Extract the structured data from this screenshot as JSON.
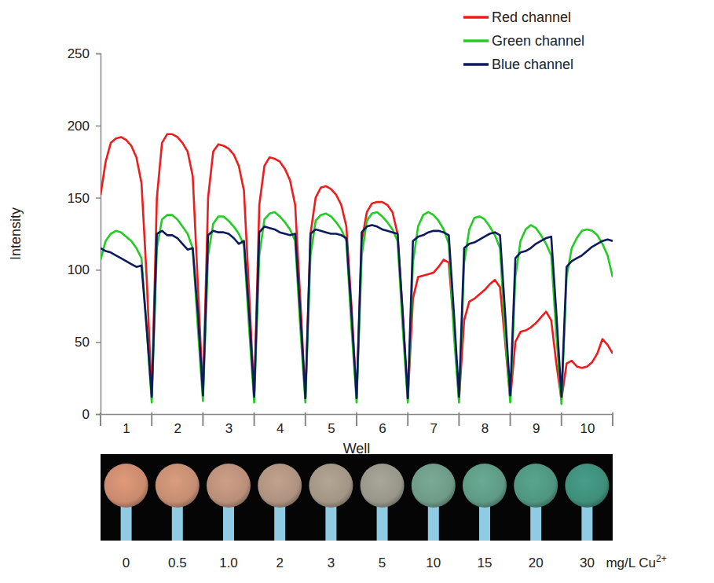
{
  "chart_data": {
    "type": "line",
    "x_label": "Well",
    "y_label": "Intensity",
    "x": [
      0.5,
      0.6,
      0.7,
      0.8,
      0.9,
      1,
      1.1,
      1.2,
      1.3,
      1.4,
      1.5,
      1.6,
      1.7,
      1.8,
      1.9,
      2,
      2.1,
      2.2,
      2.3,
      2.4,
      2.5,
      2.6,
      2.7,
      2.8,
      2.9,
      3,
      3.1,
      3.2,
      3.3,
      3.4,
      3.5,
      3.6,
      3.7,
      3.8,
      3.9,
      4,
      4.1,
      4.2,
      4.3,
      4.4,
      4.5,
      4.6,
      4.7,
      4.8,
      4.9,
      5,
      5.1,
      5.2,
      5.3,
      5.4,
      5.5,
      5.6,
      5.7,
      5.8,
      5.9,
      6,
      6.1,
      6.2,
      6.3,
      6.4,
      6.5,
      6.6,
      6.7,
      6.8,
      6.9,
      7,
      7.1,
      7.2,
      7.3,
      7.4,
      7.5,
      7.6,
      7.7,
      7.8,
      7.9,
      8,
      8.1,
      8.2,
      8.3,
      8.4,
      8.5,
      8.6,
      8.7,
      8.8,
      8.9,
      9,
      9.1,
      9.2,
      9.3,
      9.4,
      9.5,
      9.6,
      9.7,
      9.8,
      9.9,
      10,
      10.1,
      10.2,
      10.3,
      10.4,
      10.5
    ],
    "series": [
      {
        "name": "Red channel",
        "color": "#ee1c1c",
        "values": [
          152,
          175,
          188,
          191,
          192,
          190,
          186,
          178,
          160,
          95,
          12,
          150,
          188,
          194,
          194,
          192,
          188,
          182,
          165,
          90,
          13,
          150,
          182,
          187,
          186,
          184,
          180,
          172,
          155,
          85,
          12,
          145,
          172,
          178,
          177,
          175,
          170,
          162,
          145,
          80,
          11,
          125,
          150,
          157,
          158,
          156,
          152,
          145,
          130,
          75,
          11,
          120,
          140,
          146,
          147,
          147,
          145,
          140,
          125,
          70,
          10,
          80,
          95,
          96,
          97,
          98,
          102,
          107,
          105,
          60,
          10,
          65,
          78,
          80,
          83,
          86,
          90,
          93,
          88,
          50,
          10,
          50,
          57,
          58,
          60,
          63,
          67,
          71,
          65,
          35,
          10,
          35,
          37,
          33,
          32,
          33,
          36,
          42,
          52,
          48,
          42
        ]
      },
      {
        "name": "Green channel",
        "color": "#22cc22",
        "values": [
          107,
          120,
          125,
          127,
          126,
          123,
          120,
          115,
          108,
          60,
          8,
          115,
          135,
          138,
          138,
          135,
          130,
          125,
          115,
          60,
          9,
          110,
          132,
          137,
          137,
          134,
          130,
          125,
          117,
          60,
          8,
          110,
          135,
          139,
          140,
          137,
          133,
          128,
          120,
          60,
          8,
          110,
          134,
          138,
          139,
          137,
          133,
          128,
          120,
          60,
          8,
          110,
          134,
          139,
          140,
          137,
          133,
          128,
          120,
          60,
          8,
          105,
          130,
          138,
          140,
          138,
          134,
          128,
          118,
          55,
          8,
          105,
          128,
          136,
          137,
          135,
          130,
          124,
          115,
          55,
          8,
          95,
          120,
          128,
          131,
          129,
          124,
          118,
          110,
          55,
          7,
          95,
          115,
          122,
          127,
          128,
          127,
          124,
          118,
          110,
          95
        ]
      },
      {
        "name": "Blue channel",
        "color": "#0d1a5e",
        "values": [
          115,
          113,
          112,
          110,
          108,
          106,
          104,
          102,
          103,
          60,
          12,
          125,
          127,
          124,
          124,
          122,
          118,
          114,
          115,
          70,
          13,
          124,
          127,
          126,
          126,
          125,
          122,
          118,
          120,
          70,
          12,
          126,
          130,
          129,
          128,
          126,
          125,
          124,
          125,
          70,
          11,
          125,
          128,
          127,
          126,
          125,
          125,
          124,
          122,
          70,
          11,
          126,
          130,
          131,
          130,
          128,
          127,
          126,
          125,
          70,
          11,
          120,
          123,
          124,
          126,
          127,
          127,
          126,
          124,
          70,
          12,
          115,
          118,
          119,
          121,
          123,
          125,
          126,
          124,
          70,
          13,
          108,
          112,
          113,
          115,
          118,
          120,
          122,
          123,
          70,
          12,
          102,
          106,
          108,
          110,
          113,
          116,
          118,
          120,
          121,
          120
        ]
      }
    ],
    "xlim": [
      0.5,
      10.5
    ],
    "xticks": [
      1,
      2,
      3,
      4,
      5,
      6,
      7,
      8,
      9,
      10
    ],
    "ylim": [
      0,
      250
    ],
    "yticks": [
      0,
      50,
      100,
      150,
      200,
      250
    ],
    "grid": false,
    "legend": "upper right"
  },
  "strip": {
    "labels": [
      "0",
      "0.5",
      "1.0",
      "2",
      "3",
      "5",
      "10",
      "15",
      "20",
      "30"
    ],
    "unit": "mg/L Cu",
    "unit_superscript": "2+",
    "colors": [
      "#c98a6e",
      "#c48d72",
      "#b98f7a",
      "#ae9280",
      "#a29585",
      "#979689",
      "#6e9a88",
      "#5e9a85",
      "#4f9580",
      "#3f8e7a"
    ]
  }
}
